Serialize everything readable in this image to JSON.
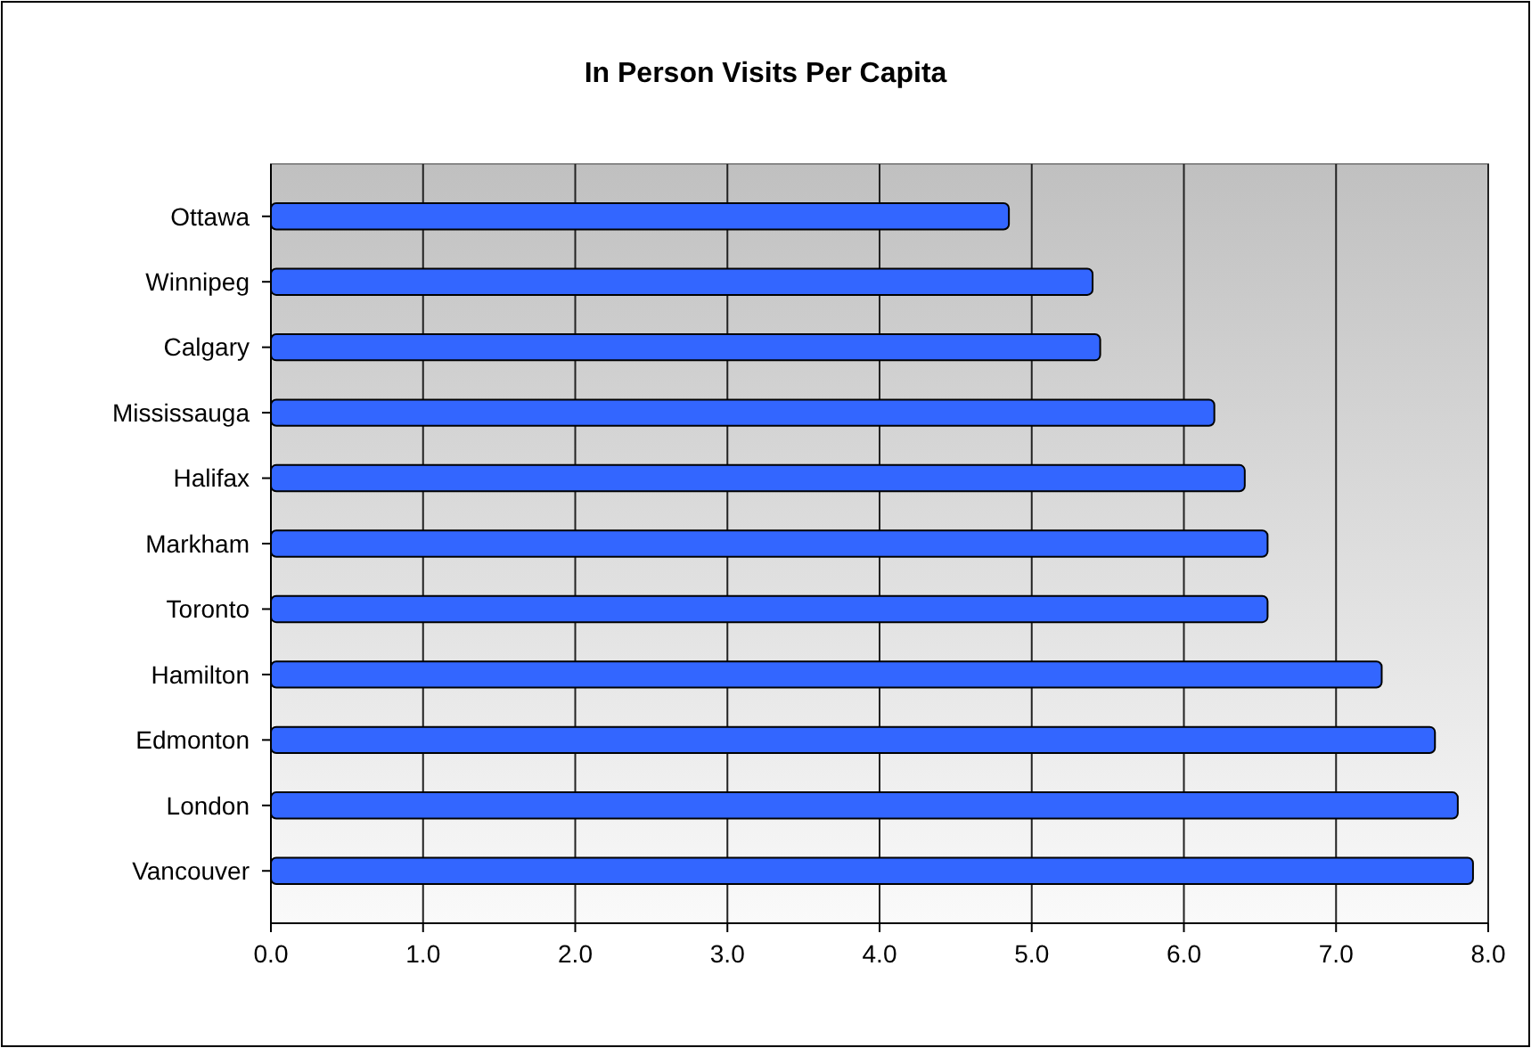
{
  "chart_data": {
    "type": "bar",
    "orientation": "horizontal",
    "title": "In Person Visits Per Capita",
    "categories": [
      "Ottawa",
      "Winnipeg",
      "Calgary",
      "Mississauga",
      "Halifax",
      "Markham",
      "Toronto",
      "Hamilton",
      "Edmonton",
      "London",
      "Vancouver"
    ],
    "values": [
      4.85,
      5.4,
      5.45,
      6.2,
      6.4,
      6.55,
      6.55,
      7.3,
      7.65,
      7.8,
      7.9
    ],
    "color": "#3366ff",
    "xlim": [
      0,
      8
    ],
    "xticks": [
      {
        "value": 0,
        "label": "0.0"
      },
      {
        "value": 1,
        "label": "1.0"
      },
      {
        "value": 2,
        "label": "2.0"
      },
      {
        "value": 3,
        "label": "3.0"
      },
      {
        "value": 4,
        "label": "4.0"
      },
      {
        "value": 5,
        "label": "5.0"
      },
      {
        "value": 6,
        "label": "6.0"
      },
      {
        "value": 7,
        "label": "7.0"
      },
      {
        "value": 8,
        "label": "8.0"
      }
    ],
    "grid": "x"
  }
}
